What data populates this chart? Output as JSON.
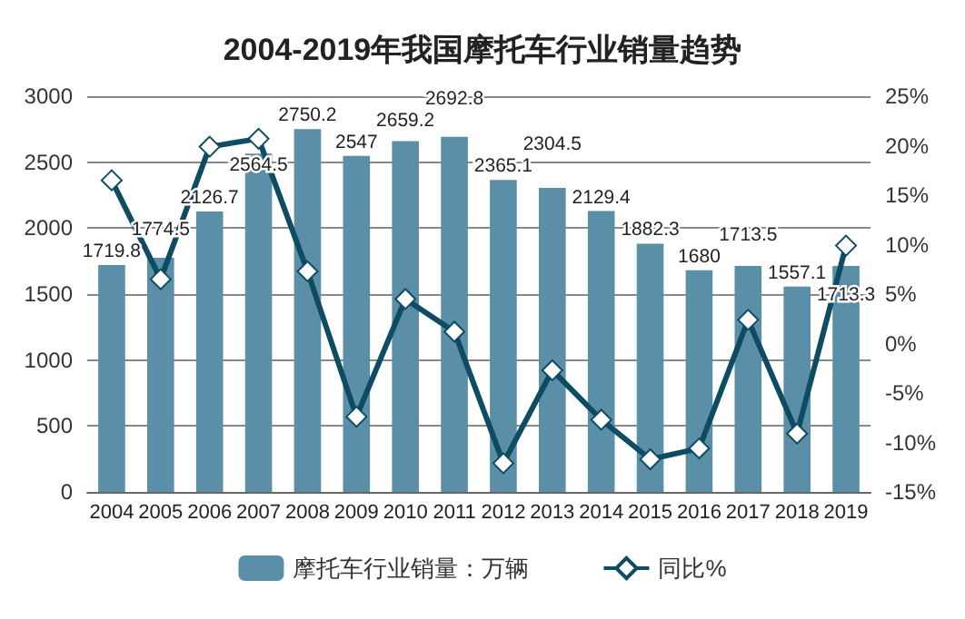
{
  "chart_data": {
    "type": "bar",
    "title": "2004-2019年我国摩托车行业销量趋势",
    "categories": [
      "2004",
      "2005",
      "2006",
      "2007",
      "2008",
      "2009",
      "2010",
      "2011",
      "2012",
      "2013",
      "2014",
      "2015",
      "2016",
      "2017",
      "2018",
      "2019"
    ],
    "series": [
      {
        "name": "摩托车行业销量：万辆",
        "color": "#5b8fa8",
        "data_labels": true,
        "values": [
          1719.8,
          1774.5,
          2126.7,
          2564.5,
          2750.2,
          2547,
          2659.2,
          2692.8,
          2365.1,
          2304.5,
          2129.4,
          1882.3,
          1680,
          1713.5,
          1557.1,
          1713.3
        ]
      },
      {
        "name": "同比%",
        "type": "line",
        "axis": "y2",
        "color": "#0e4c64",
        "marker": "diamond",
        "values": [
          16.5,
          6.5,
          19.9,
          20.7,
          7.3,
          -7.4,
          4.5,
          1.2,
          -12.1,
          -2.7,
          -7.7,
          -11.7,
          -10.6,
          2.4,
          -9.1,
          9.9
        ]
      }
    ],
    "ylim": [
      0,
      3000
    ],
    "yticks": [
      0,
      500,
      1000,
      1500,
      2000,
      2500,
      3000
    ],
    "y2lim": [
      -15,
      25
    ],
    "y2ticks": [
      {
        "value": -15,
        "label": "-15%"
      },
      {
        "value": -10,
        "label": "-10%"
      },
      {
        "value": -5,
        "label": "-5%"
      },
      {
        "value": 0,
        "label": "0%"
      },
      {
        "value": 5,
        "label": "5%"
      },
      {
        "value": 10,
        "label": "10%"
      },
      {
        "value": 15,
        "label": "15%"
      },
      {
        "value": 20,
        "label": "20%"
      },
      {
        "value": 25,
        "label": "25%"
      }
    ],
    "grid": "y",
    "legend": "bottom"
  }
}
